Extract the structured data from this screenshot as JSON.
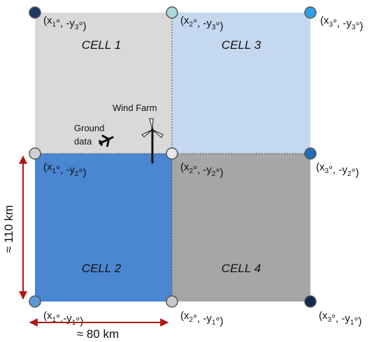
{
  "colors": {
    "cell1": "#d9d9d9",
    "cell2": "#4a86d1",
    "cell3": "#c4d8ef",
    "cell4": "#a6a6a6",
    "gridline": "#555555",
    "arrow": "#b01515"
  },
  "cells": [
    {
      "label": "CELL 1"
    },
    {
      "label": "CELL 2"
    },
    {
      "label": "CELL 3"
    },
    {
      "label": "CELL 4"
    }
  ],
  "points": [
    {
      "text": "(x1°, -y3°)",
      "parts": [
        {
          "t": "(x"
        },
        {
          "s": "1"
        },
        {
          "t": "°, -y"
        },
        {
          "s": "3"
        },
        {
          "t": "°)"
        }
      ],
      "color": "#1f3864"
    },
    {
      "text": "(x2°, -y3°)",
      "parts": [
        {
          "t": "(x"
        },
        {
          "s": "2"
        },
        {
          "t": "°, -y"
        },
        {
          "s": "3"
        },
        {
          "t": "°)"
        }
      ],
      "color": "#a9dada"
    },
    {
      "text": "(x3°, -y3°)",
      "parts": [
        {
          "t": "(x"
        },
        {
          "s": "3"
        },
        {
          "t": "°, -y"
        },
        {
          "s": "3"
        },
        {
          "t": "°)"
        }
      ],
      "color": "#2ea0ea"
    },
    {
      "text": "(x1°, -y2°)",
      "parts": [
        {
          "t": "(x"
        },
        {
          "s": "1"
        },
        {
          "t": "°, -y"
        },
        {
          "s": "2"
        },
        {
          "t": "°)"
        }
      ],
      "color": "#d0d0d0"
    },
    {
      "text": "(x2°, -y2°)",
      "parts": [
        {
          "t": "(x"
        },
        {
          "s": "2"
        },
        {
          "t": "°, -y"
        },
        {
          "s": "2"
        },
        {
          "t": "°)"
        }
      ],
      "color": "#e8e8e8"
    },
    {
      "text": "(x3°, -y2°)",
      "parts": [
        {
          "t": "(x"
        },
        {
          "s": "3"
        },
        {
          "t": "°, -y"
        },
        {
          "s": "2"
        },
        {
          "t": "°)"
        }
      ],
      "color": "#1f6fb5"
    },
    {
      "text": "(x1°,-y1°)",
      "parts": [
        {
          "t": "(x"
        },
        {
          "s": "1"
        },
        {
          "t": "°,-y"
        },
        {
          "s": "1"
        },
        {
          "t": "°)"
        }
      ],
      "color": "#5b9bd5"
    },
    {
      "text": "(x2°, -y1°)",
      "parts": [
        {
          "t": "(x"
        },
        {
          "s": "2"
        },
        {
          "t": "°, -y"
        },
        {
          "s": "1"
        },
        {
          "t": "°)"
        }
      ],
      "color": "#c9c9c9"
    },
    {
      "text": "(x3°, -y1°)",
      "parts": [
        {
          "t": "(x"
        },
        {
          "s": "3"
        },
        {
          "t": "°, -y"
        },
        {
          "s": "1"
        },
        {
          "t": "°)"
        }
      ],
      "color": "#142850"
    }
  ],
  "wind_farm_label": "Wind Farm",
  "ground_data_label": [
    "Ground",
    "data"
  ],
  "icons": {
    "wind_farm": "wind-turbine-icon",
    "ground_data": "airplane-icon"
  },
  "dimensions": {
    "horizontal": "≈ 80 km",
    "vertical": "≈ 110 km"
  }
}
